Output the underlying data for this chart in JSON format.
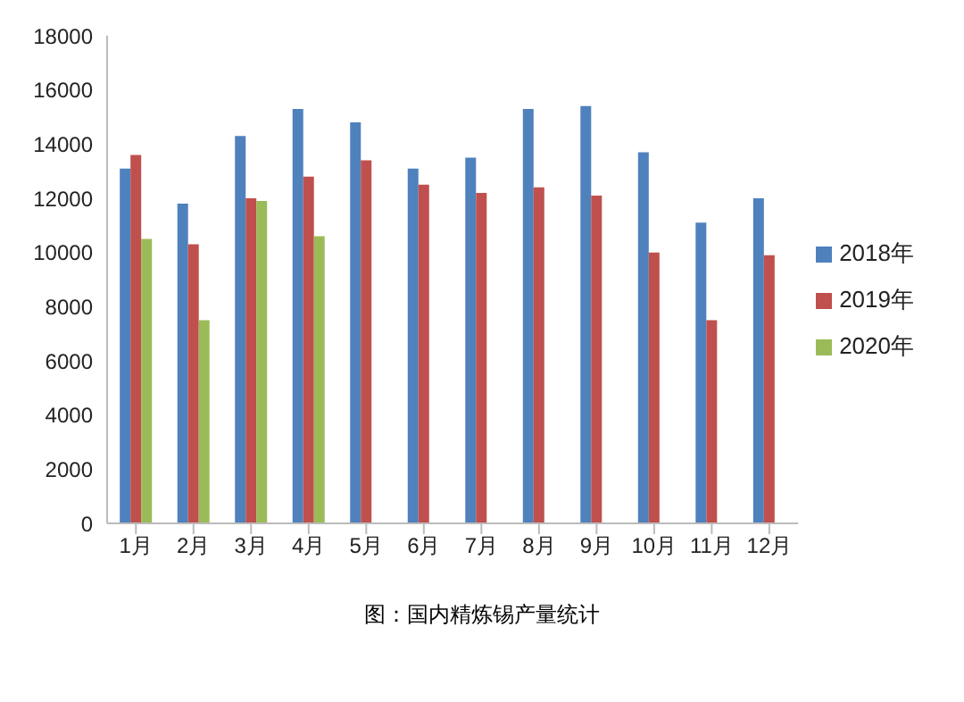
{
  "chart_data": {
    "type": "bar",
    "title": "图：国内精炼锡产量统计",
    "categories": [
      "1月",
      "2月",
      "3月",
      "4月",
      "5月",
      "6月",
      "7月",
      "8月",
      "9月",
      "10月",
      "11月",
      "12月"
    ],
    "series": [
      {
        "name": "2018年",
        "color": "#4f81bd",
        "values": [
          13100,
          11800,
          14300,
          15300,
          14800,
          13100,
          13500,
          15300,
          15400,
          13700,
          11100,
          12000
        ]
      },
      {
        "name": "2019年",
        "color": "#c0504d",
        "values": [
          13600,
          10300,
          12000,
          12800,
          13400,
          12500,
          12200,
          12400,
          12100,
          10000,
          7500,
          9900
        ]
      },
      {
        "name": "2020年",
        "color": "#9bbb59",
        "values": [
          10500,
          7500,
          11900,
          10600,
          null,
          null,
          null,
          null,
          null,
          null,
          null,
          null
        ]
      }
    ],
    "ylim": [
      0,
      18000
    ],
    "yticks": [
      0,
      2000,
      4000,
      6000,
      8000,
      10000,
      12000,
      14000,
      16000,
      18000
    ],
    "grid": false,
    "legend": "right"
  }
}
